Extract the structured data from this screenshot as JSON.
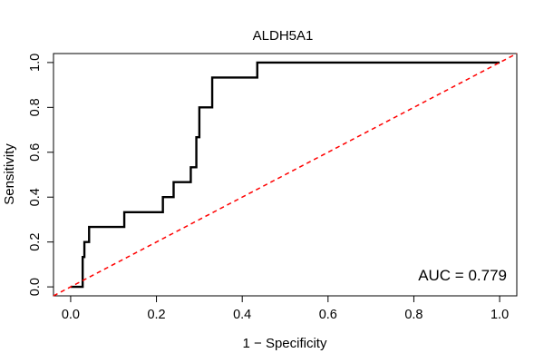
{
  "chart_data": {
    "type": "line",
    "title": "ALDH5A1",
    "xlabel": "1 − Specificity",
    "ylabel": "Sensitivity",
    "xlim": [
      -0.04,
      1.04
    ],
    "ylim": [
      -0.04,
      1.04
    ],
    "x_ticks": [
      0.0,
      0.2,
      0.4,
      0.6,
      0.8,
      1.0
    ],
    "x_tick_labels": [
      "0.0",
      "0.2",
      "0.4",
      "0.6",
      "0.8",
      "1.0"
    ],
    "y_ticks": [
      0.0,
      0.2,
      0.4,
      0.6,
      0.8,
      1.0
    ],
    "y_tick_labels": [
      "0.0",
      "0.2",
      "0.4",
      "0.6",
      "0.8",
      "1.0"
    ],
    "annotation": "AUC = 0.779",
    "auc": 0.779,
    "grid": false,
    "series": [
      {
        "name": "ROC curve",
        "color": "#000000",
        "step": true,
        "x": [
          0.0,
          0.028,
          0.028,
          0.032,
          0.032,
          0.043,
          0.043,
          0.055,
          0.055,
          0.125,
          0.125,
          0.215,
          0.215,
          0.24,
          0.24,
          0.28,
          0.28,
          0.293,
          0.293,
          0.3,
          0.3,
          0.31,
          0.31,
          0.33,
          0.33,
          0.435,
          0.435,
          1.0
        ],
        "y": [
          0.0,
          0.0,
          0.133,
          0.133,
          0.2,
          0.2,
          0.267,
          0.267,
          0.267,
          0.267,
          0.333,
          0.333,
          0.4,
          0.4,
          0.467,
          0.467,
          0.533,
          0.533,
          0.667,
          0.667,
          0.8,
          0.8,
          0.8,
          0.8,
          0.933,
          0.933,
          1.0,
          1.0
        ]
      },
      {
        "name": "Reference line",
        "color": "#ff0000",
        "dashed": true,
        "x": [
          -0.04,
          1.04
        ],
        "y": [
          -0.04,
          1.04
        ]
      }
    ]
  }
}
